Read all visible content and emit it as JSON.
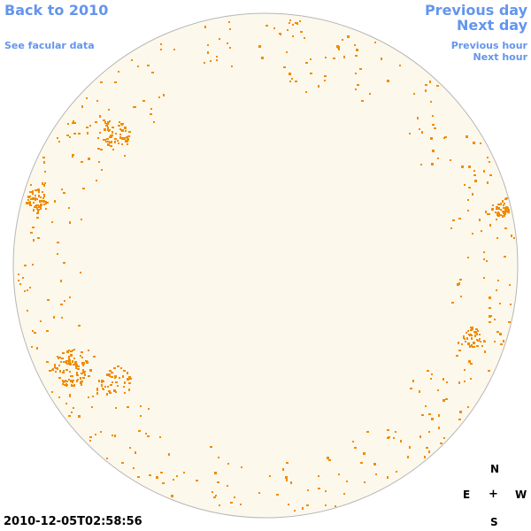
{
  "nav": {
    "back": "Back to 2010",
    "facular": "See facular data",
    "previous_day": "Previous day",
    "next_day": "Next day",
    "previous_hour": "Previous hour",
    "next_hour": "Next hour"
  },
  "compass": {
    "north": "N",
    "east": "E",
    "center": "+",
    "west": "W",
    "south": "S"
  },
  "timestamp": "2010-12-05T02:58:56",
  "colors": {
    "link": "#6495ed",
    "disk_fill": "#fdf8ec",
    "disk_edge": "#b7b7b7",
    "facula": "#f08c00"
  }
}
